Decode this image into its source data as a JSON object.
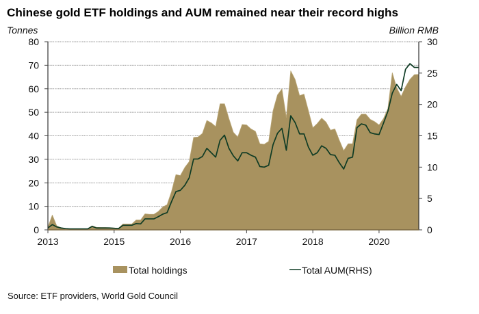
{
  "source": "Source: ETF providers, World Gold Council",
  "colors": {
    "holdings": "#A8925F",
    "holdings_edge": "#B9A676",
    "aum": "#0E3B24",
    "grid": "#9A9A9A",
    "baseline": "#7D6B45"
  },
  "chart_data": {
    "type": "area",
    "title": "Chinese gold ETF holdings and AUM remained near their record highs",
    "xlabel": "",
    "x": [
      0,
      1,
      2,
      3,
      4,
      5,
      6,
      7,
      8,
      9,
      10,
      11,
      12,
      13,
      14,
      15,
      16,
      17,
      18,
      19,
      20,
      21,
      22,
      23,
      24,
      25,
      26,
      27,
      28,
      29,
      30,
      31,
      32,
      33,
      34,
      35,
      36,
      37,
      38,
      39,
      40,
      41,
      42,
      43,
      44,
      45,
      46,
      47,
      48,
      49,
      50,
      51,
      52,
      53,
      54,
      55,
      56,
      57,
      58,
      59,
      60,
      61,
      62,
      63,
      64,
      65,
      66,
      67,
      68,
      69,
      70,
      71,
      72,
      73,
      74,
      75,
      76,
      77,
      78,
      79,
      80,
      81,
      82,
      83,
      84
    ],
    "x_range": [
      0,
      84
    ],
    "x_ticks": [
      {
        "value": 0,
        "label": "2013"
      },
      {
        "value": 15,
        "label": "2015"
      },
      {
        "value": 30,
        "label": "2016"
      },
      {
        "value": 45,
        "label": "2017"
      },
      {
        "value": 60,
        "label": "2018"
      },
      {
        "value": 75,
        "label": "2020"
      }
    ],
    "y_left": {
      "label": "Tonnes",
      "range": [
        0,
        80
      ],
      "ticks": [
        0,
        10,
        20,
        30,
        40,
        50,
        60,
        70,
        80
      ]
    },
    "y_right": {
      "label": "Billion RMB",
      "range": [
        0,
        30
      ],
      "ticks": [
        0,
        5,
        10,
        15,
        20,
        25,
        30
      ]
    },
    "grid": true,
    "legend": "bottom",
    "series": [
      {
        "name": "Total holdings",
        "type": "area",
        "axis": "left",
        "values": [
          1.1,
          6.3,
          1.7,
          0.8,
          0.5,
          0.4,
          0.3,
          0.3,
          0.3,
          0.4,
          1.7,
          1.1,
          1.0,
          1.0,
          0.9,
          0.8,
          0.7,
          2.5,
          2.5,
          2.5,
          4.2,
          4.2,
          6.8,
          6.6,
          6.6,
          7.8,
          9.7,
          10.7,
          16.3,
          23.5,
          23.1,
          26.5,
          29.0,
          39.3,
          39.5,
          41.0,
          46.5,
          45.5,
          43.9,
          53.6,
          53.6,
          47.3,
          41.5,
          39.5,
          44.8,
          44.6,
          42.9,
          41.9,
          36.6,
          36.4,
          37.6,
          50.7,
          57.4,
          59.9,
          47.8,
          67.6,
          63.9,
          57.1,
          57.7,
          50.7,
          43.4,
          45.2,
          47.5,
          45.8,
          42.4,
          42.9,
          38.1,
          33.7,
          36.6,
          36.6,
          46.8,
          49.2,
          49.2,
          47.0,
          46.0,
          44.6,
          47.3,
          51.5,
          66.8,
          60.4,
          56.8,
          60.8,
          64.0,
          66.0,
          66.1
        ]
      },
      {
        "name": "Total AUM(RHS)",
        "type": "line",
        "axis": "right",
        "values": [
          0.3,
          0.84,
          0.47,
          0.3,
          0.2,
          0.15,
          0.15,
          0.15,
          0.15,
          0.15,
          0.55,
          0.3,
          0.3,
          0.3,
          0.3,
          0.25,
          0.2,
          0.73,
          0.73,
          0.73,
          1.0,
          0.95,
          1.75,
          1.75,
          1.75,
          2.1,
          2.5,
          2.75,
          4.5,
          6.1,
          6.3,
          7.1,
          8.3,
          11.3,
          11.3,
          11.7,
          13.0,
          12.3,
          11.6,
          14.3,
          15.1,
          13.0,
          11.8,
          11.0,
          12.3,
          12.3,
          11.9,
          11.6,
          10.1,
          10.0,
          10.3,
          13.6,
          15.4,
          16.2,
          12.7,
          18.2,
          17.1,
          15.3,
          15.3,
          13.2,
          11.9,
          12.3,
          13.4,
          13.0,
          12.0,
          11.9,
          10.7,
          9.7,
          11.4,
          11.6,
          16.3,
          16.9,
          16.7,
          15.5,
          15.3,
          15.2,
          17.0,
          18.9,
          21.8,
          23.2,
          22.2,
          25.6,
          26.5,
          25.9,
          25.9
        ]
      }
    ]
  }
}
